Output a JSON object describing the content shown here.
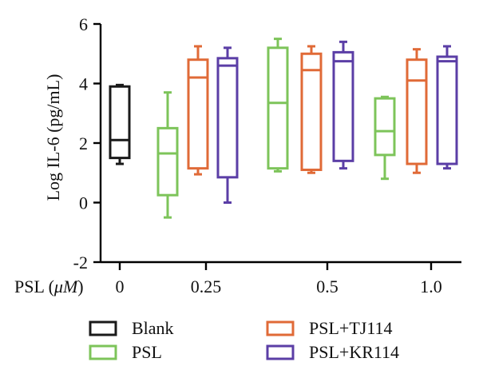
{
  "chart_data": {
    "type": "box",
    "ylabel": "Log IL-6 (pg/mL)",
    "ylim": [
      -2,
      6
    ],
    "yticks": [
      -2,
      0,
      2,
      4,
      6
    ],
    "xlabel_prefix": "PSL (",
    "xlabel_unit": "μM",
    "xlabel_suffix": ")",
    "groups": [
      "0",
      "0.25",
      "0.5",
      "1.0"
    ],
    "series": [
      {
        "name": "Blank",
        "color": "#1a1a1a"
      },
      {
        "name": "PSL",
        "color": "#7dc45a"
      },
      {
        "name": "PSL+TJ114",
        "color": "#e06a37"
      },
      {
        "name": "PSL+KR114",
        "color": "#5b3ea6"
      }
    ],
    "boxes": [
      {
        "group": "0",
        "series": "Blank",
        "min": 1.3,
        "q1": 1.5,
        "median": 2.1,
        "q3": 3.9,
        "max": 3.95
      },
      {
        "group": "0.25",
        "series": "PSL",
        "min": -0.5,
        "q1": 0.25,
        "median": 1.65,
        "q3": 2.5,
        "max": 3.7
      },
      {
        "group": "0.25",
        "series": "PSL+TJ114",
        "min": 0.95,
        "q1": 1.15,
        "median": 4.2,
        "q3": 4.8,
        "max": 5.25
      },
      {
        "group": "0.25",
        "series": "PSL+KR114",
        "min": 0.0,
        "q1": 0.85,
        "median": 4.6,
        "q3": 4.85,
        "max": 5.2
      },
      {
        "group": "0.5",
        "series": "PSL",
        "min": 1.05,
        "q1": 1.15,
        "median": 3.35,
        "q3": 5.2,
        "max": 5.5
      },
      {
        "group": "0.5",
        "series": "PSL+TJ114",
        "min": 1.0,
        "q1": 1.1,
        "median": 4.45,
        "q3": 5.0,
        "max": 5.25
      },
      {
        "group": "0.5",
        "series": "PSL+KR114",
        "min": 1.15,
        "q1": 1.4,
        "median": 4.75,
        "q3": 5.05,
        "max": 5.4
      },
      {
        "group": "1.0",
        "series": "PSL",
        "min": 0.8,
        "q1": 1.6,
        "median": 2.4,
        "q3": 3.5,
        "max": 3.55
      },
      {
        "group": "1.0",
        "series": "PSL+TJ114",
        "min": 1.0,
        "q1": 1.3,
        "median": 4.1,
        "q3": 4.8,
        "max": 5.15
      },
      {
        "group": "1.0",
        "series": "PSL+KR114",
        "min": 1.15,
        "q1": 1.3,
        "median": 4.75,
        "q3": 4.9,
        "max": 5.25
      }
    ],
    "legend": {
      "placement": "bottom",
      "items": [
        "Blank",
        "PSL",
        "PSL+TJ114",
        "PSL+KR114"
      ]
    }
  }
}
